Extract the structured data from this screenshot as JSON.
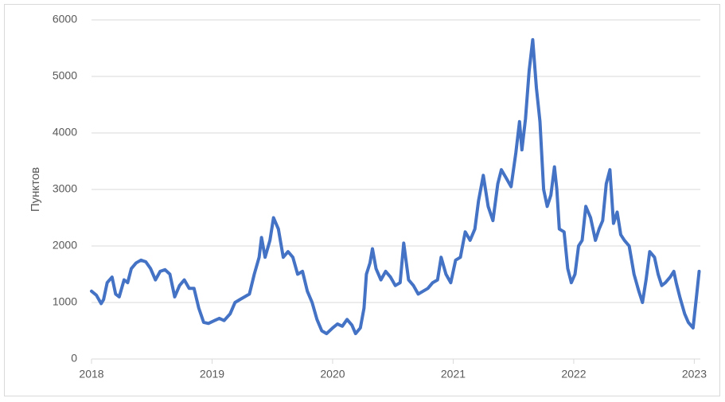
{
  "chart_data": {
    "type": "line",
    "y_label": "Пунктов",
    "x": [
      2018.0,
      2018.04,
      2018.08,
      2018.1,
      2018.13,
      2018.17,
      2018.2,
      2018.23,
      2018.27,
      2018.3,
      2018.33,
      2018.37,
      2018.41,
      2018.45,
      2018.49,
      2018.53,
      2018.57,
      2018.61,
      2018.65,
      2018.69,
      2018.73,
      2018.77,
      2018.81,
      2018.85,
      2018.89,
      2018.93,
      2018.97,
      2019.02,
      2019.06,
      2019.1,
      2019.15,
      2019.19,
      2019.23,
      2019.27,
      2019.31,
      2019.35,
      2019.39,
      2019.41,
      2019.44,
      2019.48,
      2019.51,
      2019.55,
      2019.59,
      2019.63,
      2019.67,
      2019.71,
      2019.75,
      2019.79,
      2019.83,
      2019.87,
      2019.91,
      2019.95,
      2020.0,
      2020.04,
      2020.08,
      2020.12,
      2020.16,
      2020.19,
      2020.23,
      2020.26,
      2020.28,
      2020.31,
      2020.33,
      2020.36,
      2020.4,
      2020.44,
      2020.48,
      2020.52,
      2020.56,
      2020.59,
      2020.63,
      2020.67,
      2020.71,
      2020.75,
      2020.79,
      2020.83,
      2020.87,
      2020.9,
      2020.94,
      2020.98,
      2021.02,
      2021.06,
      2021.1,
      2021.14,
      2021.18,
      2021.21,
      2021.25,
      2021.29,
      2021.33,
      2021.37,
      2021.4,
      2021.44,
      2021.48,
      2021.52,
      2021.55,
      2021.57,
      2021.6,
      2021.63,
      2021.66,
      2021.69,
      2021.72,
      2021.75,
      2021.78,
      2021.81,
      2021.84,
      2021.86,
      2021.88,
      2021.92,
      2021.95,
      2021.98,
      2022.01,
      2022.04,
      2022.07,
      2022.1,
      2022.14,
      2022.18,
      2022.21,
      2022.24,
      2022.27,
      2022.3,
      2022.33,
      2022.36,
      2022.39,
      2022.42,
      2022.46,
      2022.5,
      2022.54,
      2022.57,
      2022.6,
      2022.63,
      2022.67,
      2022.7,
      2022.73,
      2022.76,
      2022.8,
      2022.83,
      2022.85,
      2022.88,
      2022.92,
      2022.95,
      2022.99,
      2023.02,
      2023.04
    ],
    "series": [
      {
        "color": "#4472c4",
        "values": [
          1200,
          1130,
          980,
          1050,
          1350,
          1450,
          1150,
          1100,
          1400,
          1350,
          1600,
          1700,
          1750,
          1720,
          1600,
          1400,
          1550,
          1580,
          1500,
          1100,
          1300,
          1400,
          1250,
          1250,
          900,
          650,
          630,
          680,
          720,
          680,
          800,
          1000,
          1050,
          1100,
          1150,
          1500,
          1800,
          2150,
          1800,
          2100,
          2500,
          2300,
          1800,
          1900,
          1800,
          1500,
          1550,
          1200,
          1000,
          700,
          500,
          450,
          550,
          620,
          580,
          700,
          600,
          450,
          550,
          900,
          1500,
          1700,
          1950,
          1600,
          1400,
          1550,
          1450,
          1300,
          1350,
          2050,
          1400,
          1300,
          1150,
          1200,
          1250,
          1350,
          1400,
          1800,
          1500,
          1350,
          1750,
          1800,
          2250,
          2100,
          2300,
          2800,
          3250,
          2700,
          2450,
          3100,
          3350,
          3200,
          3050,
          3650,
          4200,
          3700,
          4250,
          5100,
          5650,
          4800,
          4200,
          3000,
          2700,
          2900,
          3400,
          3000,
          2300,
          2250,
          1600,
          1350,
          1500,
          2000,
          2100,
          2700,
          2500,
          2100,
          2300,
          2450,
          3100,
          3350,
          2400,
          2600,
          2200,
          2100,
          2000,
          1500,
          1200,
          1000,
          1400,
          1900,
          1800,
          1500,
          1300,
          1350,
          1450,
          1550,
          1350,
          1100,
          800,
          650,
          550,
          1150,
          1550
        ]
      }
    ],
    "xlim": [
      2018,
      2023.05
    ],
    "xticks": [
      2018,
      2019,
      2020,
      2021,
      2022,
      2023
    ],
    "ylim": [
      0,
      6000
    ],
    "yticks": [
      0,
      1000,
      2000,
      3000,
      4000,
      5000,
      6000
    ],
    "grid": true
  }
}
